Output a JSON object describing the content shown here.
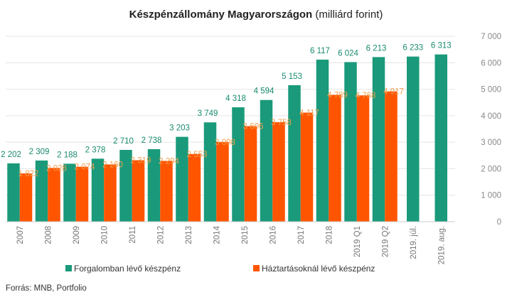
{
  "chart_data": {
    "type": "bar",
    "title_bold": "Készpénzállomány Magyarországon",
    "title_rest": " (milliárd forint)",
    "categories": [
      "2007",
      "2008",
      "2009",
      "2010",
      "2011",
      "2012",
      "2013",
      "2014",
      "2015",
      "2016",
      "2017",
      "2018",
      "2019 Q1",
      "2019 Q2",
      "2019. júl.",
      "2019. aug."
    ],
    "series": [
      {
        "name": "Forgalomban  lévő készpénz",
        "color": "#1a9a7a",
        "label_color": "#1a8a6f",
        "values": [
          2202,
          2309,
          2188,
          2378,
          2710,
          2738,
          3203,
          3749,
          4318,
          4594,
          5153,
          6117,
          6024,
          6213,
          6233,
          6313
        ],
        "labels": [
          "2 202",
          "2 309",
          "2 188",
          "2 378",
          "2 710",
          "2 738",
          "3 203",
          "3 749",
          "4 318",
          "4 594",
          "5 153",
          "6 117",
          "6 024",
          "6 213",
          "6 233",
          "6 313"
        ]
      },
      {
        "name": "Háztartásoknál lévő készpénz",
        "color": "#ff5500",
        "label_color": "#f0a050",
        "values": [
          1822,
          2028,
          2074,
          2160,
          2319,
          2294,
          2553,
          3008,
          3606,
          3758,
          4117,
          4789,
          4768,
          4917,
          null,
          null
        ],
        "labels": [
          "1 822",
          "2 028",
          "2 074",
          "2 160",
          "2 319",
          "2 294",
          "2 553",
          "3 008",
          "3 606",
          "3 758",
          "4 117",
          "4 789",
          "4 768",
          "4 917",
          "",
          ""
        ]
      }
    ],
    "y_ticks": [
      "0",
      "1 000",
      "2 000",
      "3 000",
      "4 000",
      "5 000",
      "6 000",
      "7 000"
    ],
    "ylim": [
      0,
      7000
    ],
    "y_axis_side": "right",
    "grid": true,
    "legend_position": "bottom",
    "source": "Forrás: MNB, Portfolio"
  }
}
